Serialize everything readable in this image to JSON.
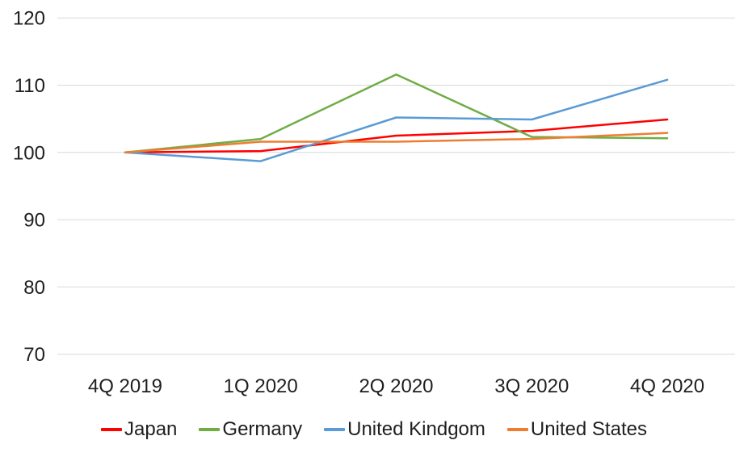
{
  "chart_data": {
    "type": "line",
    "title": "",
    "xlabel": "",
    "ylabel": "",
    "categories": [
      "4Q 2019",
      "1Q 2020",
      "2Q 2020",
      "3Q 2020",
      "4Q 2020"
    ],
    "series": [
      {
        "name": "Japan",
        "color": "#FF0000",
        "values": [
          100,
          100.2,
          102.5,
          103.2,
          104.9
        ]
      },
      {
        "name": "Germany",
        "color": "#70AD47",
        "values": [
          100,
          102.0,
          111.6,
          102.3,
          102.1
        ]
      },
      {
        "name": "United Kindgom",
        "color": "#5B9BD5",
        "values": [
          100,
          98.7,
          105.2,
          104.9,
          110.8
        ]
      },
      {
        "name": "United States",
        "color": "#ED7D31",
        "values": [
          100,
          101.6,
          101.6,
          102.0,
          102.9
        ]
      }
    ],
    "yticks": [
      120,
      110,
      100,
      90,
      80,
      70
    ],
    "ylim": [
      70,
      120
    ],
    "grid": "horizontal-only",
    "gridline_color": "#d9d9d9",
    "text_color": "#1f1f1f",
    "background_color": "#ffffff",
    "legend_position": "bottom"
  }
}
